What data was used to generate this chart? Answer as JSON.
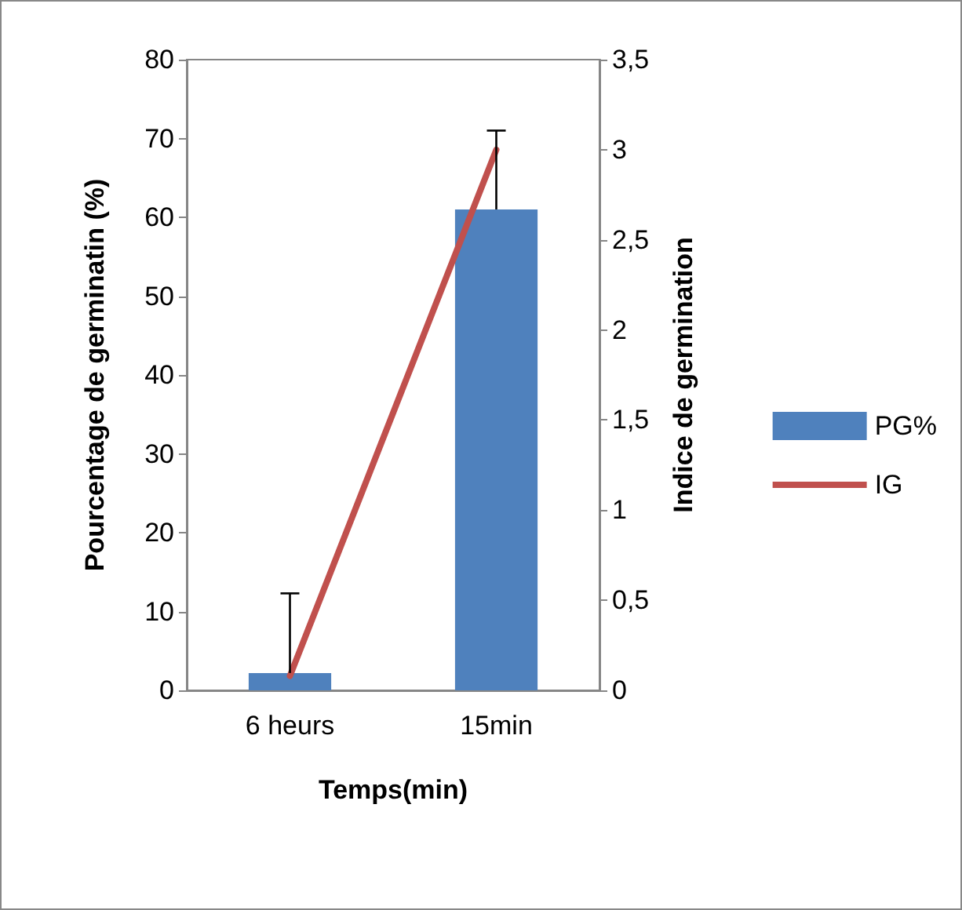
{
  "chart_data": {
    "type": "bar",
    "xlabel": "Temps(min)",
    "ylabel": "Pourcentage de germinatin (%)",
    "y2label": "Indice de germination",
    "categories": [
      "6 heurs",
      "15min"
    ],
    "series": [
      {
        "name": "PG%",
        "color": "#4f81bd",
        "values": [
          2.2,
          61
        ],
        "errors": [
          [
            2.2,
            12.3
          ],
          [
            61,
            71
          ]
        ]
      },
      {
        "name": "IG",
        "type": "line",
        "axis": "y2",
        "color": "#c0504d",
        "values": [
          0.08,
          3.0
        ]
      }
    ],
    "ylim": [
      0,
      80
    ],
    "yticks": [
      0,
      10,
      20,
      30,
      40,
      50,
      60,
      70,
      80
    ],
    "y2lim": [
      0,
      3.5
    ],
    "y2ticks": [
      0,
      {
        "value": 0.5,
        "label": "0,5"
      },
      1,
      {
        "value": 1.5,
        "label": "1,5"
      },
      2,
      {
        "value": 2.5,
        "label": "2,5"
      },
      3,
      {
        "value": 3.5,
        "label": "3,5"
      }
    ],
    "grid": false,
    "legend": "right",
    "marker": "none",
    "line_style": "solid"
  }
}
